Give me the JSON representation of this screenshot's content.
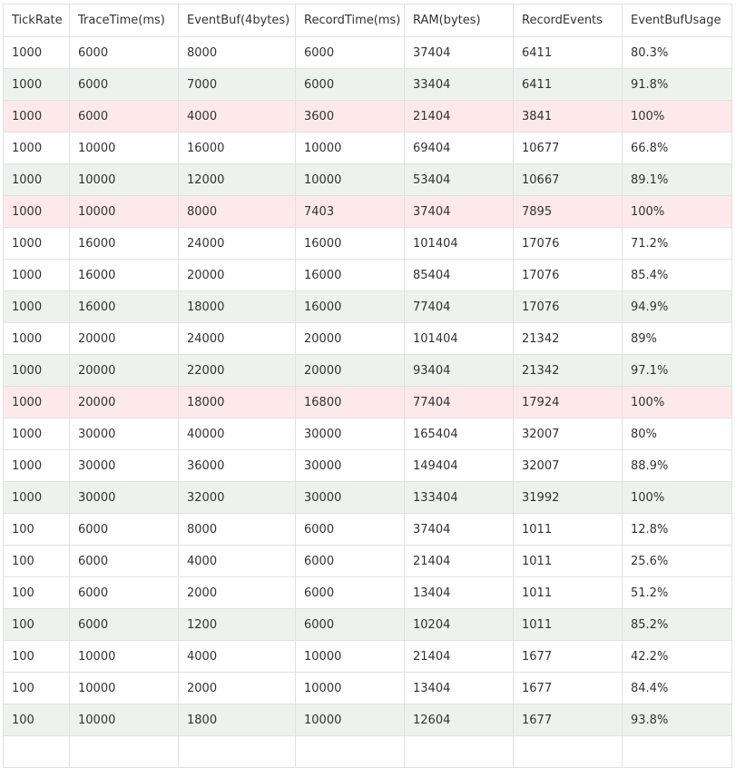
{
  "table": {
    "headers": [
      "TickRate",
      "TraceTime(ms)",
      "EventBuf(4bytes)",
      "RecordTime(ms)",
      "RAM(bytes)",
      "RecordEvents",
      "EventBufUsage"
    ],
    "highlight_colors": {
      "white": "#ffffff",
      "green": "#edf2ec",
      "red": "#fde9e9"
    },
    "rows": [
      {
        "highlight": "white",
        "cells": [
          "1000",
          "6000",
          "8000",
          "6000",
          "37404",
          "6411",
          "80.3%"
        ]
      },
      {
        "highlight": "green",
        "cells": [
          "1000",
          "6000",
          "7000",
          "6000",
          "33404",
          "6411",
          "91.8%"
        ]
      },
      {
        "highlight": "red",
        "cells": [
          "1000",
          "6000",
          "4000",
          "3600",
          "21404",
          "3841",
          "100%"
        ]
      },
      {
        "highlight": "white",
        "cells": [
          "1000",
          "10000",
          "16000",
          "10000",
          "69404",
          "10677",
          "66.8%"
        ]
      },
      {
        "highlight": "green",
        "cells": [
          "1000",
          "10000",
          "12000",
          "10000",
          "53404",
          "10667",
          "89.1%"
        ]
      },
      {
        "highlight": "red",
        "cells": [
          "1000",
          "10000",
          "8000",
          "7403",
          "37404",
          "7895",
          "100%"
        ]
      },
      {
        "highlight": "white",
        "cells": [
          "1000",
          "16000",
          "24000",
          "16000",
          "101404",
          "17076",
          "71.2%"
        ]
      },
      {
        "highlight": "white",
        "cells": [
          "1000",
          "16000",
          "20000",
          "16000",
          "85404",
          "17076",
          "85.4%"
        ]
      },
      {
        "highlight": "green",
        "cells": [
          "1000",
          "16000",
          "18000",
          "16000",
          "77404",
          "17076",
          "94.9%"
        ]
      },
      {
        "highlight": "white",
        "cells": [
          "1000",
          "20000",
          "24000",
          "20000",
          "101404",
          "21342",
          "89%"
        ]
      },
      {
        "highlight": "green",
        "cells": [
          "1000",
          "20000",
          "22000",
          "20000",
          "93404",
          "21342",
          "97.1%"
        ]
      },
      {
        "highlight": "red",
        "cells": [
          "1000",
          "20000",
          "18000",
          "16800",
          "77404",
          "17924",
          "100%"
        ]
      },
      {
        "highlight": "white",
        "cells": [
          "1000",
          "30000",
          "40000",
          "30000",
          "165404",
          "32007",
          "80%"
        ]
      },
      {
        "highlight": "white",
        "cells": [
          "1000",
          "30000",
          "36000",
          "30000",
          "149404",
          "32007",
          "88.9%"
        ]
      },
      {
        "highlight": "green",
        "cells": [
          "1000",
          "30000",
          "32000",
          "30000",
          "133404",
          "31992",
          "100%"
        ]
      },
      {
        "highlight": "white",
        "cells": [
          "100",
          "6000",
          "8000",
          "6000",
          "37404",
          "1011",
          "12.8%"
        ]
      },
      {
        "highlight": "white",
        "cells": [
          "100",
          "6000",
          "4000",
          "6000",
          "21404",
          "1011",
          "25.6%"
        ]
      },
      {
        "highlight": "white",
        "cells": [
          "100",
          "6000",
          "2000",
          "6000",
          "13404",
          "1011",
          "51.2%"
        ]
      },
      {
        "highlight": "green",
        "cells": [
          "100",
          "6000",
          "1200",
          "6000",
          "10204",
          "1011",
          "85.2%"
        ]
      },
      {
        "highlight": "white",
        "cells": [
          "100",
          "10000",
          "4000",
          "10000",
          "21404",
          "1677",
          "42.2%"
        ]
      },
      {
        "highlight": "white",
        "cells": [
          "100",
          "10000",
          "2000",
          "10000",
          "13404",
          "1677",
          "84.4%"
        ]
      },
      {
        "highlight": "green",
        "cells": [
          "100",
          "10000",
          "1800",
          "10000",
          "12604",
          "1677",
          "93.8%"
        ]
      },
      {
        "highlight": "white",
        "cells": [
          "",
          "",
          "",
          "",
          "",
          "",
          ""
        ]
      }
    ]
  }
}
